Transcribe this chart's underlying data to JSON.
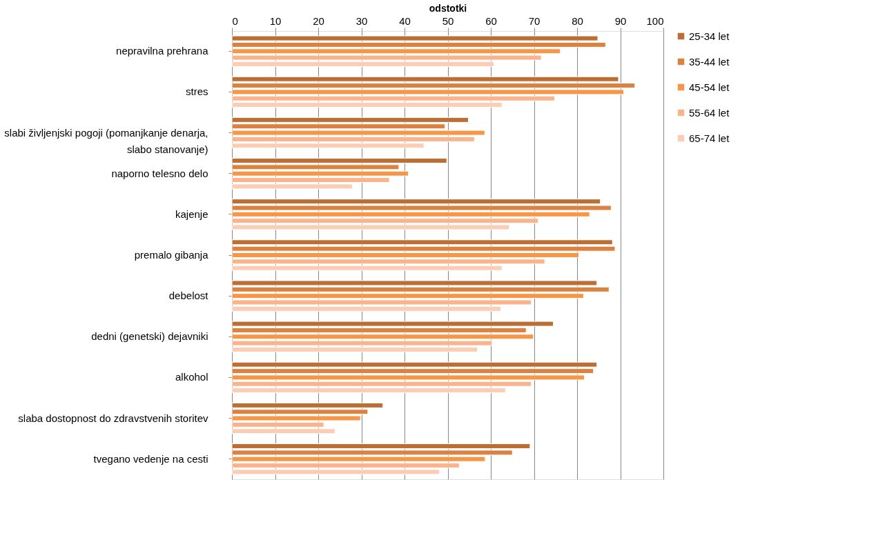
{
  "chart_data": {
    "type": "bar",
    "orientation": "horizontal",
    "xlabel": "odstotki",
    "categories": [
      "nepravilna prehrana",
      "stres",
      "slabi življenjski pogoji (pomanjkanje denarja, slabo stanovanje)",
      "naporno telesno delo",
      "kajenje",
      "premalo gibanja",
      "debelost",
      "dedni (genetski) dejavniki",
      "alkohol",
      "slaba dostopnost do zdravstvenih storitev",
      "tvegano vedenje na cesti"
    ],
    "series": [
      {
        "name": "25-34 let",
        "color": "#bb6f34",
        "values": [
          84.8,
          89.6,
          54.8,
          49.8,
          85.4,
          88.2,
          84.6,
          74.5,
          84.6,
          35.0,
          69.1
        ]
      },
      {
        "name": "35-44 let",
        "color": "#db8240",
        "values": [
          86.6,
          93.4,
          49.4,
          38.7,
          87.9,
          88.8,
          87.4,
          68.2,
          83.8,
          31.5,
          65.0
        ]
      },
      {
        "name": "45-54 let",
        "color": "#f79646",
        "values": [
          76.1,
          90.8,
          58.6,
          40.9,
          82.9,
          80.4,
          81.5,
          69.9,
          81.7,
          29.8,
          58.7
        ]
      },
      {
        "name": "55-64 let",
        "color": "#f9b48e",
        "values": [
          71.7,
          74.8,
          56.2,
          36.5,
          71.0,
          72.5,
          69.4,
          60.3,
          69.4,
          21.3,
          52.7
        ]
      },
      {
        "name": "65-74 let",
        "color": "#fbcdb5",
        "values": [
          60.7,
          62.6,
          44.5,
          27.9,
          64.3,
          62.6,
          62.3,
          56.9,
          63.4,
          23.9,
          48.1
        ]
      }
    ],
    "xlim": [
      0,
      100
    ],
    "xticks": [
      0,
      10,
      20,
      30,
      40,
      50,
      60,
      70,
      80,
      90,
      100
    ],
    "grid": "x",
    "legend": "right"
  }
}
